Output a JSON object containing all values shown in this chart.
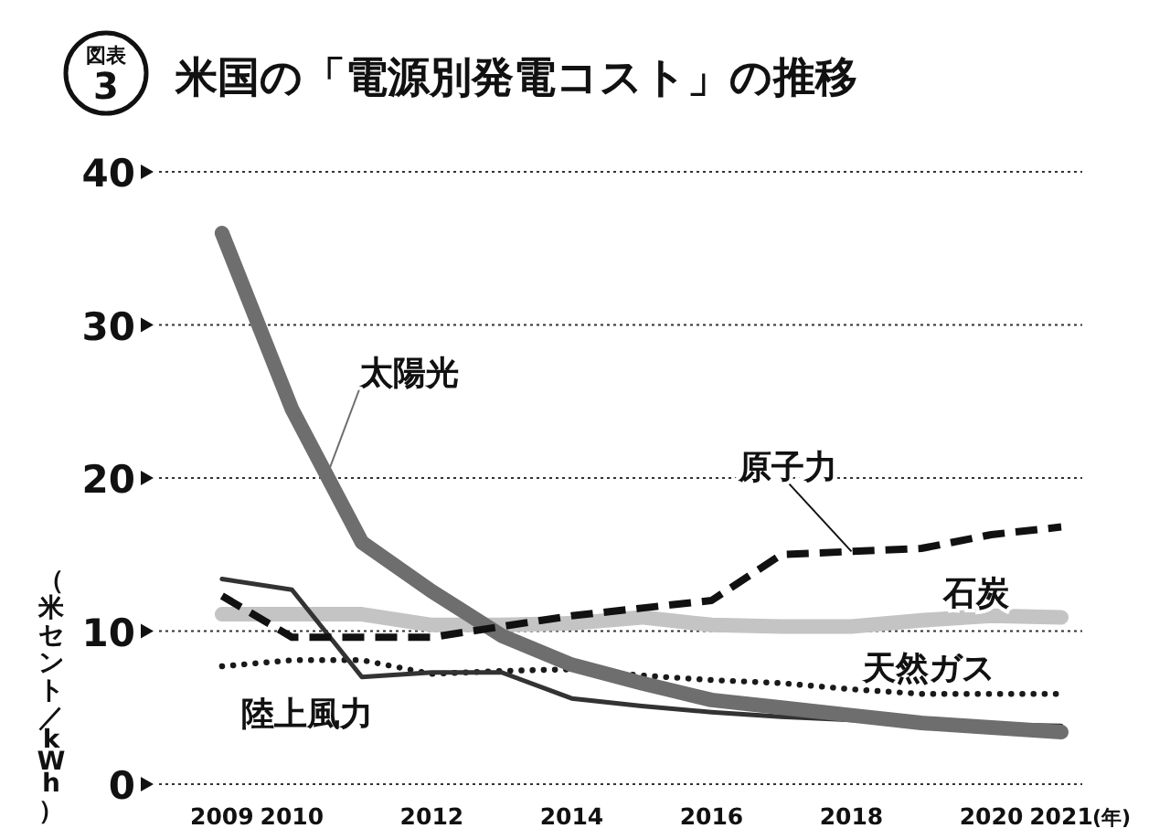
{
  "chart_data": {
    "type": "line",
    "title": "米国の「電源別発電コスト」の推移",
    "ylabel": "（米セント／kWh）",
    "xlabel": "(年)",
    "annotations": [
      "図表3"
    ],
    "x": [
      2009,
      2010,
      2011,
      2012,
      2013,
      2014,
      2015,
      2016,
      2017,
      2018,
      2019,
      2020,
      2021
    ],
    "xlim": [
      2008.1,
      2021.3
    ],
    "xticks": [
      2009,
      2010,
      2012,
      2014,
      2016,
      2018,
      2020,
      2021
    ],
    "ylim": [
      0,
      40
    ],
    "yticks": [
      0,
      10,
      20,
      30,
      40
    ],
    "grid": "y",
    "series": [
      {
        "name": "太陽光",
        "color": "#6e6e6e",
        "line_style": "solid",
        "values": [
          36,
          24.5,
          15.8,
          12.6,
          9.7,
          7.8,
          6.6,
          5.5,
          5.0,
          4.5,
          4.0,
          3.7,
          3.4
        ]
      },
      {
        "name": "原子力",
        "color": "#111111",
        "line_style": "dashed",
        "values": [
          12.3,
          9.6,
          9.6,
          9.6,
          10.3,
          11.0,
          11.5,
          12.0,
          15.0,
          15.2,
          15.4,
          16.3,
          16.8
        ]
      },
      {
        "name": "石炭",
        "color": "#c4c4c4",
        "line_style": "solid",
        "values": [
          11.1,
          11.1,
          11.1,
          10.4,
          10.4,
          10.5,
          10.9,
          10.4,
          10.3,
          10.3,
          10.7,
          11.0,
          10.9
        ]
      },
      {
        "name": "天然ガス",
        "color": "#1a1a1a",
        "line_style": "dotted",
        "values": [
          7.7,
          8.1,
          8.1,
          7.2,
          7.4,
          7.5,
          7.1,
          6.8,
          6.6,
          6.2,
          5.9,
          5.9,
          5.9
        ]
      },
      {
        "name": "陸上風力",
        "color": "#333333",
        "line_style": "solid",
        "values": [
          13.4,
          12.7,
          7.0,
          7.3,
          7.3,
          5.6,
          5.1,
          4.7,
          4.4,
          4.2,
          4.0,
          3.9,
          3.8
        ]
      }
    ]
  }
}
